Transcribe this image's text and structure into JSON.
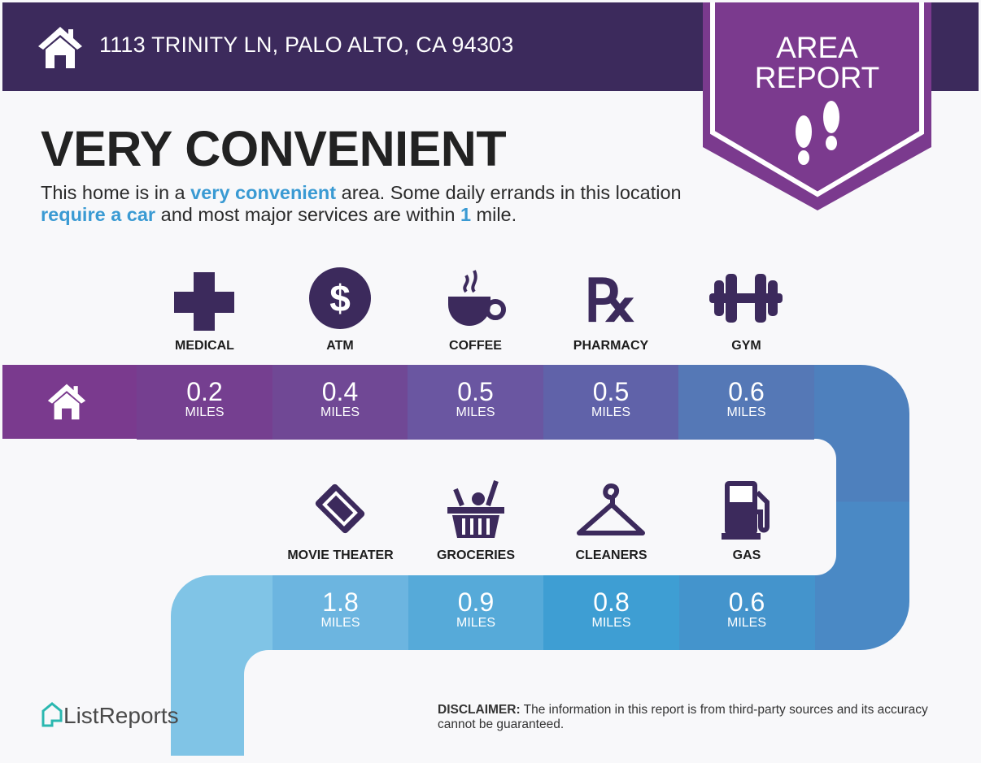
{
  "header": {
    "address": "1113 TRINITY LN, PALO ALTO, CA 94303",
    "banner_line1": "AREA",
    "banner_line2": "REPORT"
  },
  "title": "VERY CONVENIENT",
  "description": {
    "p1": "This home is in a ",
    "h1": "very convenient",
    "p2": " area. Some daily errands in this location ",
    "h2": "require a car",
    "p3": " and most major services are within ",
    "h3": "1",
    "p4": " mile."
  },
  "colors": {
    "header": "#3c2a5c",
    "banner": "#7b3a8e",
    "highlight": "#3a9ad3"
  },
  "row1": [
    {
      "label": "MEDICAL",
      "value": "0.2",
      "unit": "MILES",
      "icon": "medical-cross-icon",
      "color": "#753f90"
    },
    {
      "label": "ATM",
      "value": "0.4",
      "unit": "MILES",
      "icon": "dollar-icon",
      "color": "#704895"
    },
    {
      "label": "COFFEE",
      "value": "0.5",
      "unit": "MILES",
      "icon": "coffee-cup-icon",
      "color": "#6a56a1"
    },
    {
      "label": "PHARMACY",
      "value": "0.5",
      "unit": "MILES",
      "icon": "rx-icon",
      "color": "#6062a9"
    },
    {
      "label": "GYM",
      "value": "0.6",
      "unit": "MILES",
      "icon": "dumbbell-icon",
      "color": "#5578b6"
    }
  ],
  "row2": [
    {
      "label": "MOVIE THEATER",
      "value": "1.8",
      "unit": "MILES",
      "icon": "ticket-icon",
      "color": "#6cb5e0"
    },
    {
      "label": "GROCERIES",
      "value": "0.9",
      "unit": "MILES",
      "icon": "basket-icon",
      "color": "#56aad9"
    },
    {
      "label": "CLEANERS",
      "value": "0.8",
      "unit": "MILES",
      "icon": "hanger-icon",
      "color": "#3e9ed3"
    },
    {
      "label": "GAS",
      "value": "0.6",
      "unit": "MILES",
      "icon": "gas-pump-icon",
      "color": "#4494cc"
    }
  ],
  "footer": {
    "logo": "ListReports",
    "disclaimer_label": "DISCLAIMER:",
    "disclaimer": " The information in this report is from third-party sources and its accuracy cannot be guaranteed."
  }
}
